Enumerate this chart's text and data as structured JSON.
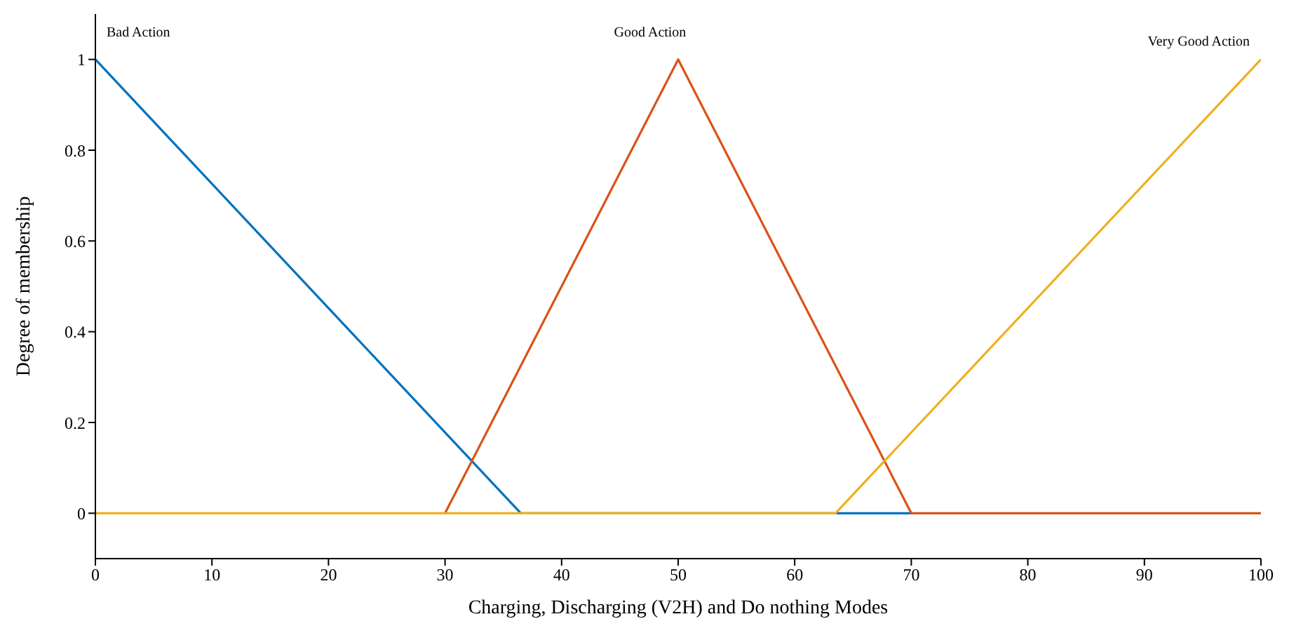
{
  "chart_data": {
    "type": "line",
    "xlabel": "Charging, Discharging (V2H) and Do nothing Modes",
    "ylabel": "Degree of membership",
    "series": [
      {
        "name": "Bad Action",
        "color": "#0072bd",
        "x": [
          0,
          36.5,
          70
        ],
        "values": [
          1,
          0,
          0
        ]
      },
      {
        "name": "Good Action",
        "color": "#d95319",
        "x": [
          30,
          50,
          70,
          100
        ],
        "values": [
          0,
          1,
          0,
          0
        ]
      },
      {
        "name": "Very Good Action",
        "color": "#edb120",
        "x": [
          0,
          63.5,
          100
        ],
        "values": [
          0,
          0,
          1
        ]
      }
    ],
    "xlim": [
      0,
      100
    ],
    "xticks": [
      0,
      10,
      20,
      30,
      40,
      50,
      60,
      70,
      80,
      90,
      100
    ],
    "ylim": [
      -0.1,
      1.1
    ],
    "yticks": [
      0,
      0.2,
      0.4,
      0.6,
      0.8,
      1
    ],
    "grid": false,
    "legend": false,
    "marker": "none",
    "line_style": "solid"
  }
}
